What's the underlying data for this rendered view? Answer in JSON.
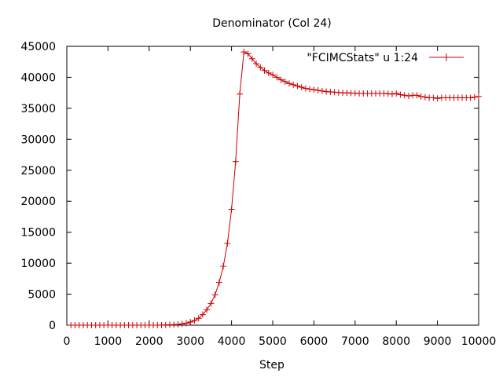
{
  "chart_data": {
    "type": "line",
    "title": "Denominator (Col 24)",
    "xlabel": "Step",
    "ylabel": "",
    "xlim": [
      0,
      10000
    ],
    "ylim": [
      0,
      45000
    ],
    "xticks": [
      "0",
      "1000",
      "2000",
      "3000",
      "4000",
      "5000",
      "6000",
      "7000",
      "8000",
      "9000",
      "10000"
    ],
    "yticks": [
      "0",
      "5000",
      "10000",
      "15000",
      "20000",
      "25000",
      "30000",
      "35000",
      "40000",
      "45000"
    ],
    "grid": false,
    "legend_position": "top-right",
    "series": [
      {
        "name": "\"FCIMCStats\" u 1:24",
        "color": "#cc0000",
        "marker": "plus",
        "x": [
          100,
          200,
          300,
          400,
          500,
          600,
          700,
          800,
          900,
          1000,
          1100,
          1200,
          1300,
          1400,
          1500,
          1600,
          1700,
          1800,
          1900,
          2000,
          2100,
          2200,
          2300,
          2400,
          2500,
          2600,
          2700,
          2800,
          2900,
          3000,
          3100,
          3200,
          3300,
          3400,
          3500,
          3600,
          3700,
          3800,
          3900,
          4000,
          4100,
          4200,
          4300,
          4400,
          4500,
          4600,
          4700,
          4800,
          4900,
          5000,
          5100,
          5200,
          5300,
          5400,
          5500,
          5600,
          5700,
          5800,
          5900,
          6000,
          6100,
          6200,
          6300,
          6400,
          6500,
          6600,
          6700,
          6800,
          6900,
          7000,
          7100,
          7200,
          7300,
          7400,
          7500,
          7600,
          7700,
          7800,
          7900,
          8000,
          8100,
          8200,
          8300,
          8400,
          8500,
          8600,
          8700,
          8800,
          8900,
          9000,
          9100,
          9200,
          9300,
          9400,
          9500,
          9600,
          9700,
          9800,
          9900,
          10000
        ],
        "y": [
          0,
          0,
          0,
          0,
          0,
          0,
          0,
          0,
          0,
          0,
          0,
          0,
          0,
          0,
          0,
          0,
          0,
          0,
          0,
          0,
          0,
          0,
          10,
          30,
          50,
          80,
          120,
          200,
          320,
          500,
          750,
          1100,
          1700,
          2500,
          3500,
          4900,
          6900,
          9500,
          13200,
          18700,
          26400,
          37300,
          44100,
          43800,
          43000,
          42200,
          41600,
          41100,
          40700,
          40400,
          40000,
          39600,
          39300,
          39000,
          38800,
          38600,
          38400,
          38200,
          38100,
          38000,
          37900,
          37800,
          37700,
          37650,
          37600,
          37550,
          37500,
          37500,
          37450,
          37450,
          37400,
          37400,
          37400,
          37400,
          37400,
          37400,
          37400,
          37350,
          37300,
          37400,
          37200,
          37100,
          37000,
          37100,
          37100,
          36900,
          36800,
          36700,
          36700,
          36600,
          36700,
          36700,
          36700,
          36700,
          36700,
          36700,
          36700,
          36700,
          36800,
          36900
        ]
      }
    ]
  }
}
